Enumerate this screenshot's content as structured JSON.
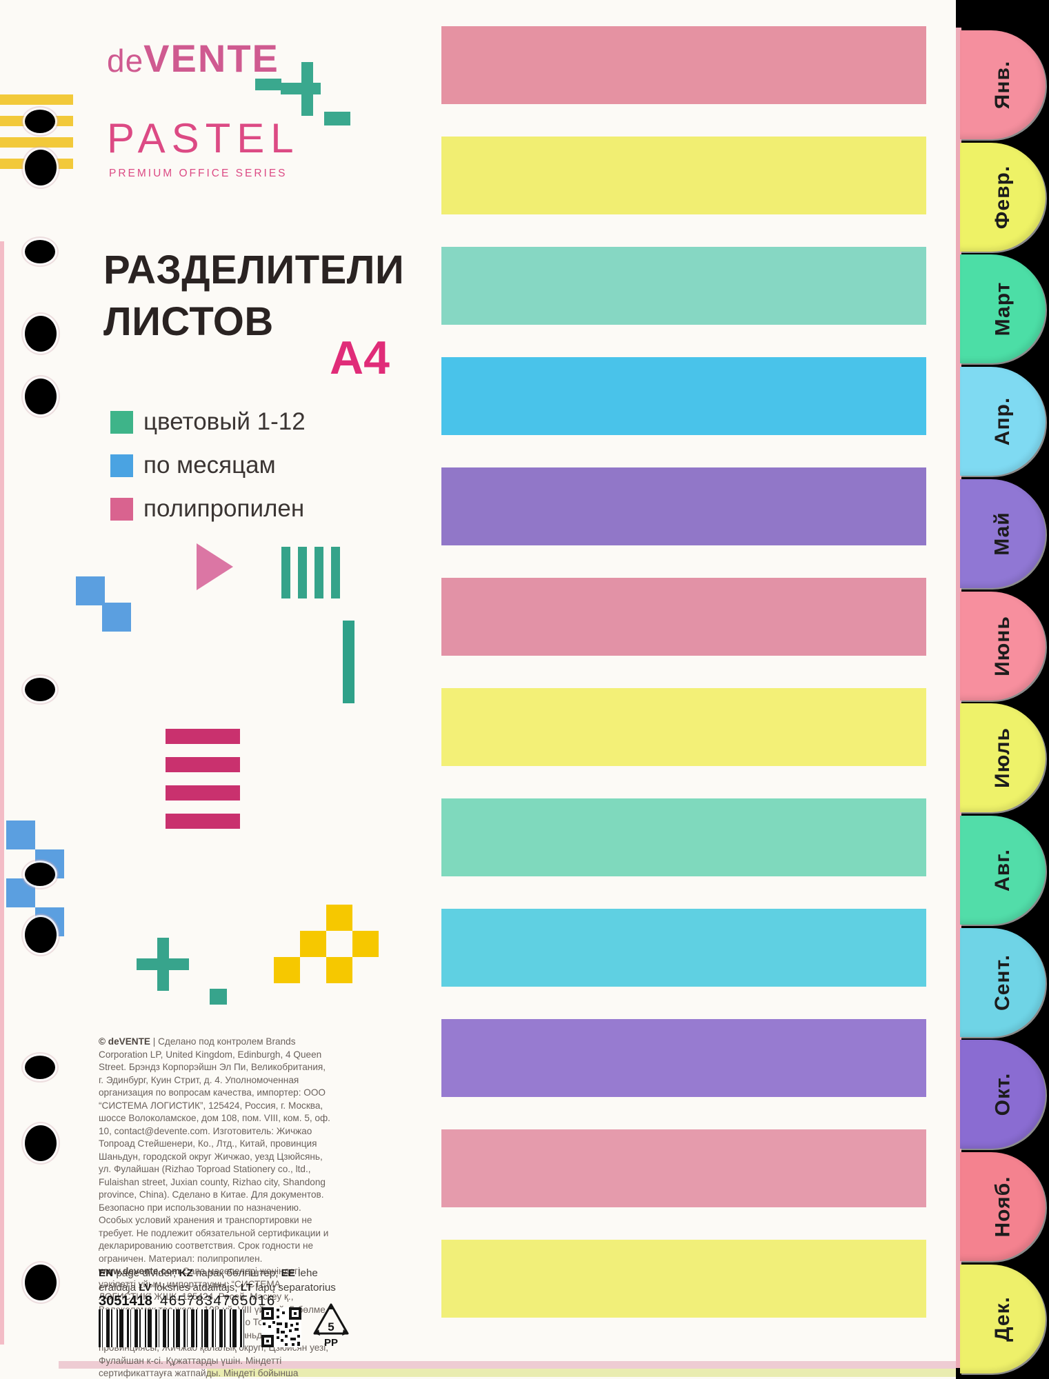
{
  "brand": {
    "logo_de": "de",
    "logo_main": "VENTE",
    "series": "PASTEL",
    "series_subtitle": "PREMIUM OFFICE SERIES"
  },
  "title": {
    "line1": "РАЗДЕЛИТЕЛИ",
    "line2": "ЛИСТОВ",
    "format": "A4"
  },
  "features": [
    {
      "label": "цветовый 1-12",
      "color": "#3eb489"
    },
    {
      "label": "по месяцам",
      "color": "#4aa3e2"
    },
    {
      "label": "полипропилен",
      "color": "#d9638f"
    }
  ],
  "bars": [
    {
      "color": "#e592a2"
    },
    {
      "color": "#f1ee72"
    },
    {
      "color": "#86d7c3"
    },
    {
      "color": "#49c3ea"
    },
    {
      "color": "#9177c8"
    },
    {
      "color": "#e292a6"
    },
    {
      "color": "#f3f077"
    },
    {
      "color": "#7fd9bd"
    },
    {
      "color": "#5fd0e2"
    },
    {
      "color": "#977bd0"
    },
    {
      "color": "#e59bac"
    },
    {
      "color": "#f1ef79"
    }
  ],
  "tabs": [
    {
      "label": "Янв.",
      "color": "#f58f9e"
    },
    {
      "label": "Февр.",
      "color": "#eef266"
    },
    {
      "label": "Март",
      "color": "#4cdea6"
    },
    {
      "label": "Апр.",
      "color": "#7fdaf2"
    },
    {
      "label": "Май",
      "color": "#9077d4"
    },
    {
      "label": "Июнь",
      "color": "#f78f9e"
    },
    {
      "label": "Июль",
      "color": "#eef26a"
    },
    {
      "label": "Авг.",
      "color": "#52dda9"
    },
    {
      "label": "Сент.",
      "color": "#6fd4e6"
    },
    {
      "label": "Окт.",
      "color": "#8a6cd2"
    },
    {
      "label": "Нояб.",
      "color": "#f4828f"
    },
    {
      "label": "Дек.",
      "color": "#eef06a"
    }
  ],
  "fine_print": {
    "lead": "© deVENTE",
    "body1": " | Сделано под контролем Brands Corporation LP, United Kingdom, Edinburgh, 4 Queen Street. Брэндз Корпорэйшн Эл Пи, Великобритания, г. Эдинбург, Куин Стрит, д. 4. Уполномоченная организация по вопросам качества, импортер: ООО “СИСТЕМА ЛОГИСТИК”, 125424, Россия, г. Москва, шоссе Волоколамское, дом 108, пом. VIII, ком. 5, оф. 10, contact@devente.com. Изготовитель: Жичжао Топроад Стейшенери, Ко., Лтд., Китай, провинция Шаньдун, городской округ Жичжао, уезд Цзюйсянь, ул. Фулайшан (Rizhao Toproad Stationery co., ltd., Fulaishan street, Juxian county, Rizhao city, Shandong province, China). Сделано в Китае. Для документов. Безопасно при использовании по назначению. Особых условий хранения и транспортировки не требует. Не подлежит обязательной сертификации и декларированию соответствия. Срок годности не ограничен. Материал: полипропилен. ",
    "website": "www.devente.com",
    "body2": " Сапа мәселелері жөніндегі уәкілетті ұйым, импорттаушы: “СИСТЕМА ЛОГИСТИК” ЖШК, 125424, Ресей, Мәскеу қ., Волоколамск тас жолы, 108-үй, VIII үй-жай, 5-бөлме, 10-кеңсе. Өндірілген жері: Жичжао Топроад Стейшенери, Ко., Лтд., Қытай, Шаньдун провинциясы, Жичжао қалалық округі, Цзюйсян уезі, Фулайшан к-сі. Құжаттарды үшін. Міндетті сертификаттауға жатпайды. Міндеті бойынша пайдалану қауіпсіз. Айрықша сақтау және тасымалдау шарттарын қажет етпейді. Жарамдылық мерзімі шектелмеген."
  },
  "languages": [
    {
      "code": "EN",
      "name": "page divider;"
    },
    {
      "code": "KZ",
      "name": "парақ бөлгіштер;"
    },
    {
      "code": "EE",
      "name": "lehe eraldaja"
    },
    {
      "code": "LV",
      "name": "loksnes atdalītājs;"
    },
    {
      "code": "LT",
      "name": "lapų separatorius"
    }
  ],
  "footer": {
    "sku": "3051418",
    "ean": "4657834765016",
    "recycling_number": "5",
    "recycling_material": "PP"
  },
  "colors": {
    "brand_pink": "#dc4a84",
    "title_black": "#2a2322",
    "accent_magenta": "#c9316e",
    "accent_teal": "#37a48c",
    "accent_blue": "#5b9fe0",
    "accent_yellow": "#f2c93a",
    "checker_yellow": "#f6c800"
  }
}
